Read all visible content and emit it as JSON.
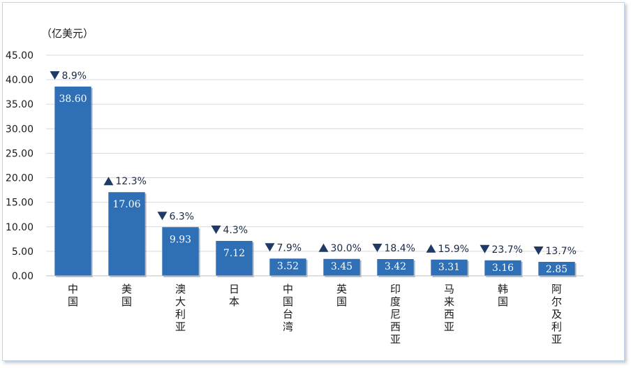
{
  "chart_data": {
    "type": "bar",
    "unit_label": "（亿美元）",
    "categories": [
      "中国",
      "美国",
      "澳大利亚",
      "日本",
      "中国台湾",
      "英国",
      "印度尼西亚",
      "马来西亚",
      "韩国",
      "阿尔及利亚"
    ],
    "values": [
      38.6,
      17.06,
      9.93,
      7.12,
      3.52,
      3.45,
      3.42,
      3.31,
      3.16,
      2.85
    ],
    "value_labels": [
      "38.60",
      "17.06",
      "9.93",
      "7.12",
      "3.52",
      "3.45",
      "3.42",
      "3.31",
      "3.16",
      "2.85"
    ],
    "changes": [
      {
        "dir": "down",
        "label": "8.9%"
      },
      {
        "dir": "up",
        "label": "12.3%"
      },
      {
        "dir": "down",
        "label": "6.3%"
      },
      {
        "dir": "down",
        "label": "4.3%"
      },
      {
        "dir": "down",
        "label": "7.9%"
      },
      {
        "dir": "up",
        "label": "30.0%"
      },
      {
        "dir": "down",
        "label": "18.4%"
      },
      {
        "dir": "up",
        "label": "15.9%"
      },
      {
        "dir": "down",
        "label": "23.7%"
      },
      {
        "dir": "down",
        "label": "13.7%"
      }
    ],
    "yticks": [
      "0.00",
      "5.00",
      "10.00",
      "15.00",
      "20.00",
      "25.00",
      "30.00",
      "35.00",
      "40.00",
      "45.00"
    ],
    "ylim": [
      0,
      45
    ],
    "grid": true,
    "colors": {
      "bar": "#2e6fb5",
      "value_text": "#ffffff",
      "grid": "#d9d9d9",
      "marker": "#1f3a66"
    }
  }
}
